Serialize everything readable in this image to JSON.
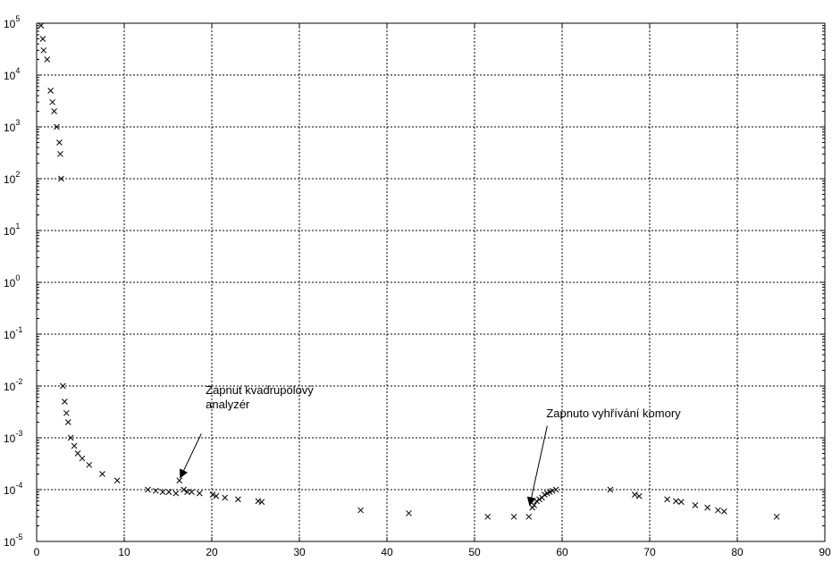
{
  "chart_data": {
    "type": "scatter",
    "title": "",
    "xlabel": "",
    "ylabel": "",
    "xlim": [
      0,
      90
    ],
    "ylim": [
      1e-05,
      100000.0
    ],
    "yscale": "log",
    "grid": true,
    "marker": "x",
    "x_ticks": [
      0,
      10,
      20,
      30,
      40,
      50,
      60,
      70,
      80,
      90
    ],
    "y_tick_exponents": [
      -5,
      -4,
      -3,
      -2,
      -1,
      0,
      1,
      2,
      3,
      4,
      5
    ],
    "y_tick_base": "10",
    "series": [
      {
        "points": [
          [
            0.5,
            90000
          ],
          [
            0.7,
            50000
          ],
          [
            0.8,
            30000
          ],
          [
            1.2,
            20000
          ],
          [
            1.6,
            5000
          ],
          [
            1.8,
            3000
          ],
          [
            2.0,
            2000
          ],
          [
            2.3,
            1000
          ],
          [
            2.6,
            500
          ],
          [
            2.7,
            300
          ],
          [
            2.8,
            100
          ],
          [
            3.0,
            0.01
          ],
          [
            3.2,
            0.005
          ],
          [
            3.4,
            0.003
          ],
          [
            3.6,
            0.002
          ],
          [
            3.9,
            0.001
          ],
          [
            4.3,
            0.0007
          ],
          [
            4.7,
            0.0005
          ],
          [
            5.2,
            0.0004
          ],
          [
            6.0,
            0.0003
          ],
          [
            7.5,
            0.0002
          ],
          [
            9.2,
            0.00015
          ],
          [
            12.7,
            0.0001
          ],
          [
            13.6,
            9.5e-05
          ],
          [
            14.4,
            9e-05
          ],
          [
            15.1,
            9e-05
          ],
          [
            15.9,
            8.5e-05
          ],
          [
            16.3,
            0.00015
          ],
          [
            16.8,
            0.0001
          ],
          [
            17.2,
            9e-05
          ],
          [
            17.7,
            9e-05
          ],
          [
            18.6,
            8.5e-05
          ],
          [
            20.1,
            8e-05
          ],
          [
            20.5,
            7.5e-05
          ],
          [
            21.5,
            7e-05
          ],
          [
            23.0,
            6.5e-05
          ],
          [
            25.3,
            6e-05
          ],
          [
            25.7,
            5.8e-05
          ],
          [
            37.0,
            4e-05
          ],
          [
            42.5,
            3.5e-05
          ],
          [
            51.5,
            3e-05
          ],
          [
            54.5,
            3e-05
          ],
          [
            56.2,
            3e-05
          ],
          [
            56.6,
            4.5e-05
          ],
          [
            56.8,
            5e-05
          ],
          [
            57.1,
            6e-05
          ],
          [
            57.4,
            6.5e-05
          ],
          [
            57.7,
            7e-05
          ],
          [
            58.0,
            8e-05
          ],
          [
            58.3,
            8.5e-05
          ],
          [
            58.6,
            9e-05
          ],
          [
            58.9,
            9.5e-05
          ],
          [
            59.3,
            0.0001
          ],
          [
            65.5,
            0.0001
          ],
          [
            68.3,
            8e-05
          ],
          [
            68.8,
            7.5e-05
          ],
          [
            72.0,
            6.5e-05
          ],
          [
            73.0,
            6e-05
          ],
          [
            73.6,
            5.8e-05
          ],
          [
            75.2,
            5e-05
          ],
          [
            76.6,
            4.5e-05
          ],
          [
            77.8,
            4e-05
          ],
          [
            78.5,
            3.8e-05
          ],
          [
            84.5,
            3e-05
          ]
        ]
      }
    ],
    "annotations": [
      {
        "lines": [
          "Zapnut kvadrupólový",
          "analyzér"
        ],
        "text_anchor": [
          19.3,
          0.007
        ],
        "arrow_from": [
          18.8,
          0.0012
        ],
        "arrow_to": [
          16.4,
          0.00017
        ]
      },
      {
        "lines": [
          "Zapnuto vyhřívání komory"
        ],
        "text_anchor": [
          58.2,
          0.0025
        ],
        "arrow_from": [
          58.3,
          0.0017
        ],
        "arrow_to": [
          56.3,
          5e-05
        ]
      }
    ]
  }
}
